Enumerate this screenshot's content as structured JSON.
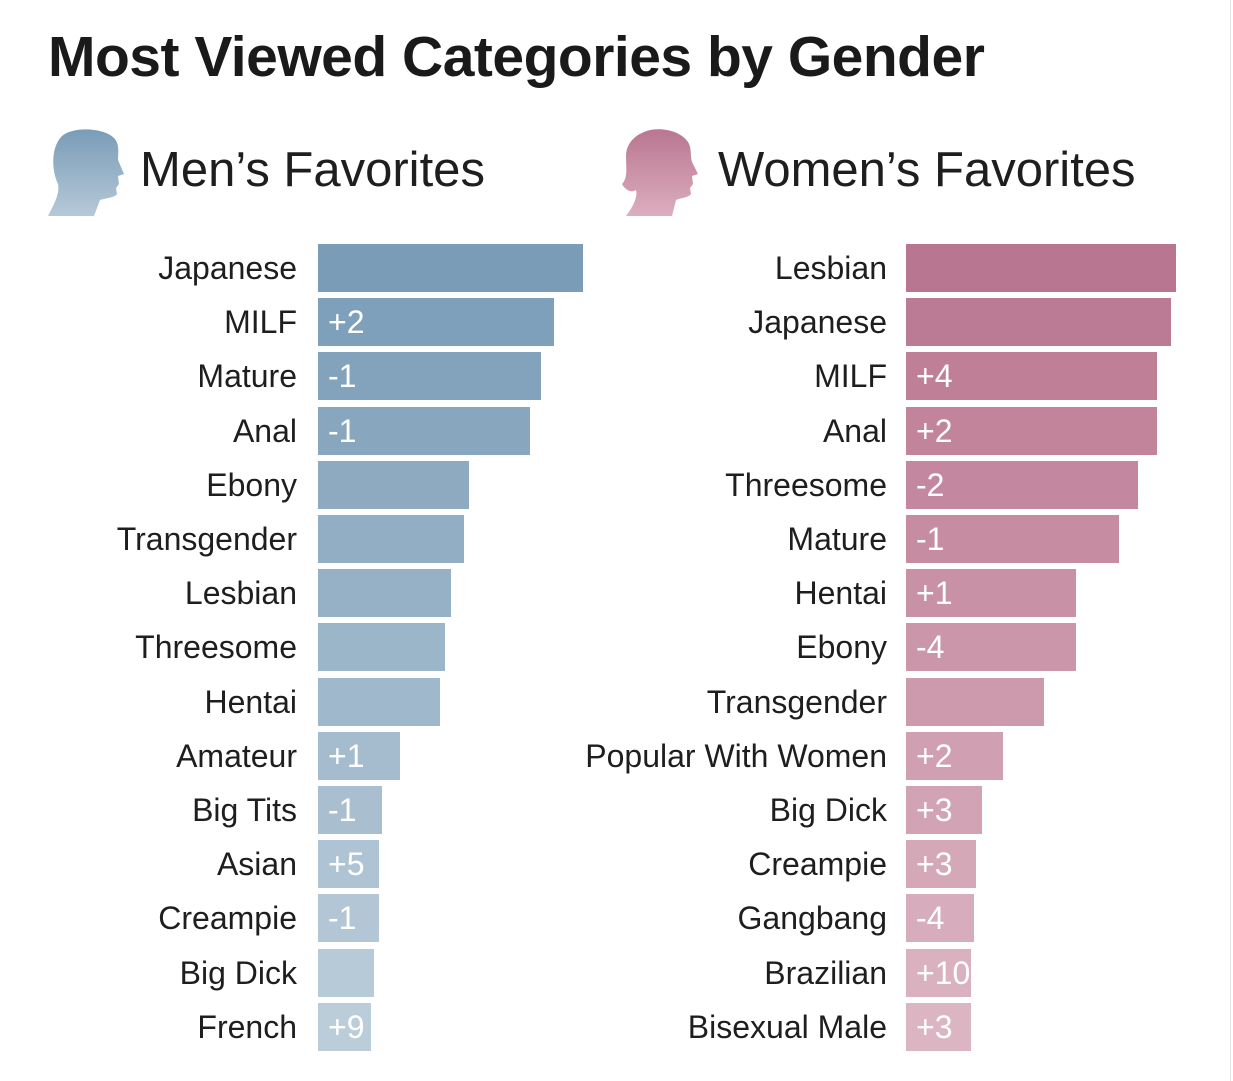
{
  "title": "Most Viewed Categories by Gender",
  "chart_data": [
    {
      "type": "bar",
      "orientation": "horizontal",
      "title": "Men’s Favorites",
      "icon": "male-head-silhouette-icon",
      "color_top": "#7a9cb7",
      "color_bottom": "#bccdda",
      "categories": [
        "Japanese",
        "MILF",
        "Mature",
        "Anal",
        "Ebony",
        "Transgender",
        "Lesbian",
        "Threesome",
        "Hentai",
        "Amateur",
        "Big Tits",
        "Asian",
        "Creampie",
        "Big Dick",
        "French"
      ],
      "values": [
        100,
        89,
        84,
        80,
        57,
        55,
        50,
        48,
        46,
        31,
        24,
        23,
        23,
        21,
        20
      ],
      "rank_change": [
        "",
        "+2",
        "-1",
        "-1",
        "",
        "",
        "",
        "",
        "",
        "+1",
        "-1",
        "+5",
        "-1",
        "",
        "+9"
      ]
    },
    {
      "type": "bar",
      "orientation": "horizontal",
      "title": "Women’s Favorites",
      "icon": "female-head-silhouette-icon",
      "color_top": "#b97690",
      "color_bottom": "#dcb5c3",
      "categories": [
        "Lesbian",
        "Japanese",
        "MILF",
        "Anal",
        "Threesome",
        "Mature",
        "Hentai",
        "Ebony",
        "Transgender",
        "Popular With Women",
        "Big Dick",
        "Creampie",
        "Gangbang",
        "Brazilian",
        "Bisexual Male"
      ],
      "values": [
        100,
        98,
        93,
        93,
        86,
        79,
        63,
        63,
        51,
        36,
        28,
        26,
        25,
        24,
        24
      ],
      "rank_change": [
        "",
        "",
        "+4",
        "+2",
        "-2",
        "-1",
        "+1",
        "-4",
        "",
        "+2",
        "+3",
        "+3",
        "-4",
        "+10",
        "+3"
      ]
    }
  ]
}
